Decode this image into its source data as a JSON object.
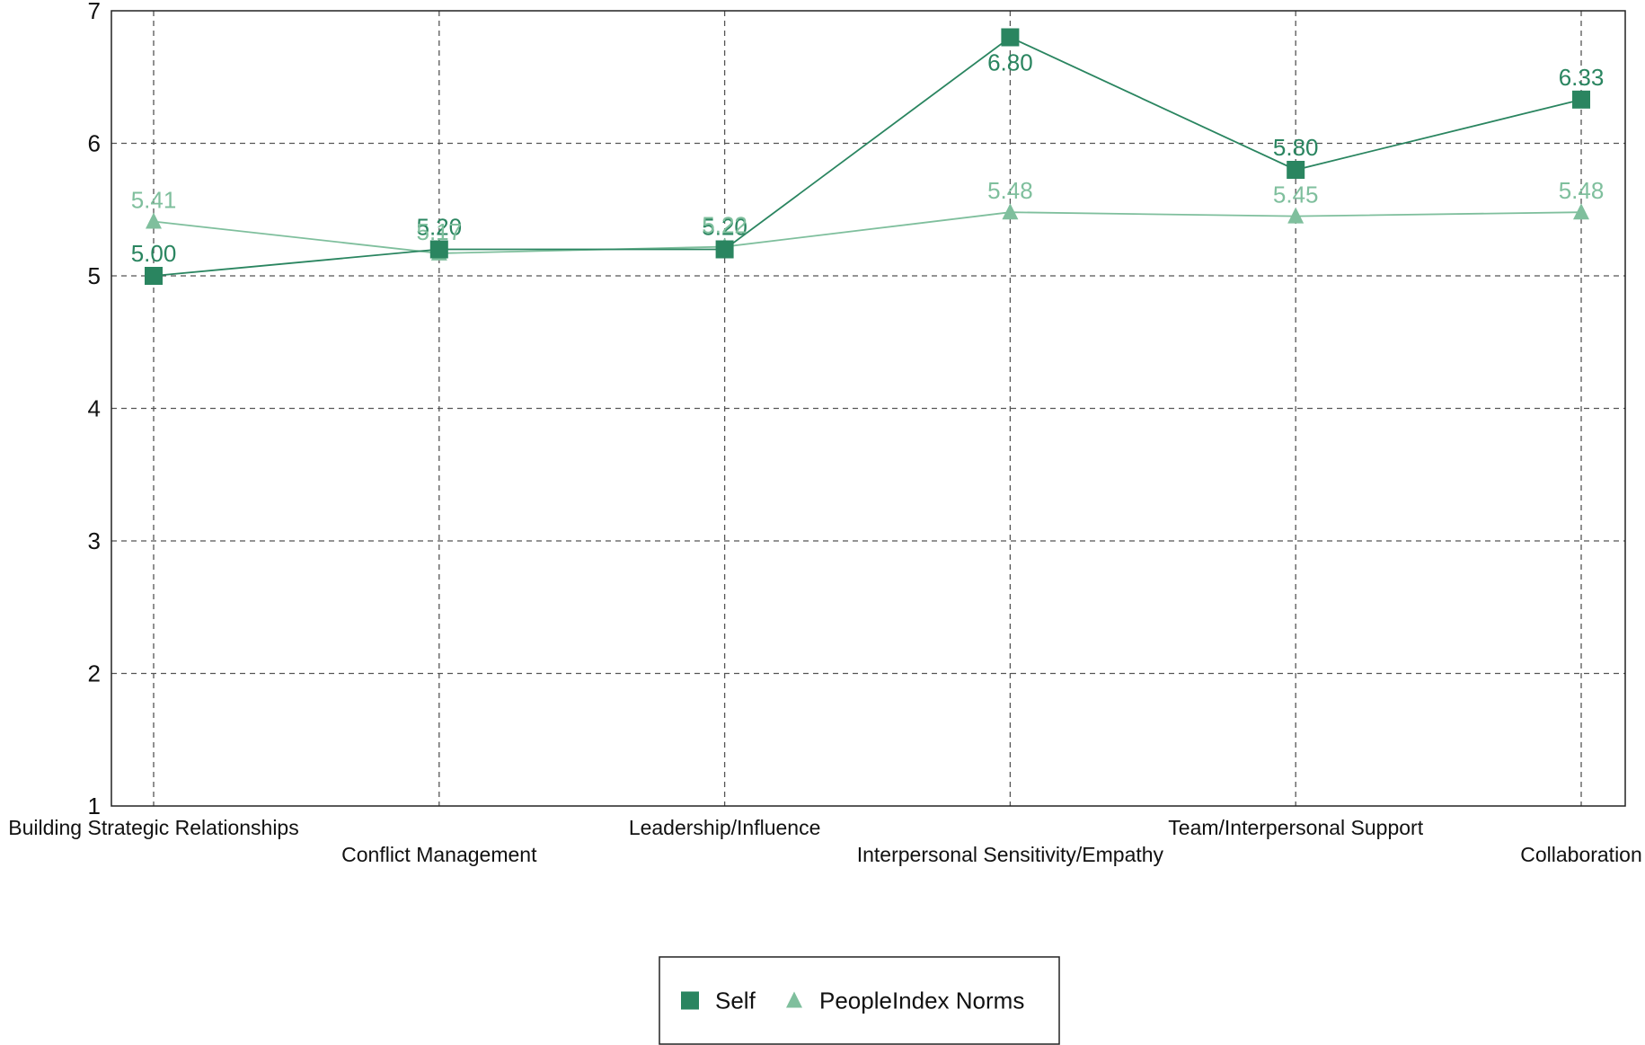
{
  "chart_data": {
    "type": "line",
    "title": "",
    "xlabel": "",
    "ylabel": "",
    "categories": [
      "Building Strategic Relationships",
      "Conflict Management",
      "Leadership/Influence",
      "Interpersonal Sensitivity/Empathy",
      "Team/Interpersonal Support",
      "Collaboration"
    ],
    "ylim": [
      1,
      7
    ],
    "yticks": [
      "1",
      "2",
      "3",
      "4",
      "5",
      "6",
      "7"
    ],
    "grid": true,
    "legend_position": "bottom-center",
    "series": [
      {
        "name": "Self",
        "marker": "square",
        "color": "#2a8560",
        "values": [
          5.0,
          5.2,
          5.2,
          6.8,
          5.8,
          6.33
        ],
        "labels": [
          "5.00",
          "5.20",
          "5.20",
          "6.80",
          "5.80",
          "6.33"
        ]
      },
      {
        "name": "PeopleIndex Norms",
        "marker": "triangle",
        "color": "#7fbf9d",
        "values": [
          5.41,
          5.17,
          5.22,
          5.48,
          5.45,
          5.48
        ],
        "labels": [
          "5.41",
          "5.17",
          "5.22",
          "5.48",
          "5.45",
          "5.48"
        ]
      }
    ]
  }
}
